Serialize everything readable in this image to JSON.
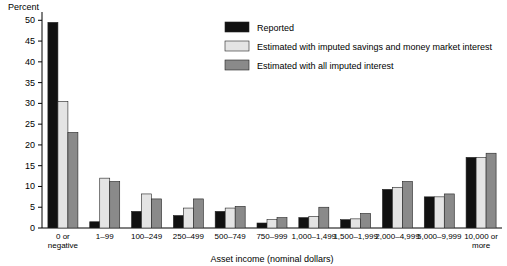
{
  "chart_data": {
    "type": "bar",
    "y_label": "Percent",
    "x_label": "Asset income (nominal dollars)",
    "categories": [
      "0 or negative",
      "1–99",
      "100–249",
      "250–499",
      "500–749",
      "750–999",
      "1,000–1,499",
      "1,500–1,999",
      "2,000–4,999",
      "5,000–9,999",
      "10,000 or more"
    ],
    "series": [
      {
        "name": "Reported",
        "color": "#111111",
        "values": [
          49.5,
          1.5,
          4,
          3,
          4,
          1.2,
          2.5,
          2,
          9.3,
          7.5,
          17
        ]
      },
      {
        "name": "Estimated with imputed savings and money market interest",
        "color": "#e4e4e4",
        "values": [
          30.5,
          12,
          8.2,
          4.8,
          4.8,
          2,
          2.8,
          2.2,
          9.8,
          7.5,
          17
        ]
      },
      {
        "name": "Estimated with all imputed interest",
        "color": "#8a8a8a",
        "values": [
          23,
          11.2,
          7,
          7,
          5.2,
          2.5,
          5,
          3.5,
          11.2,
          8.2,
          18
        ]
      }
    ],
    "ylim": [
      0,
      52
    ],
    "yticks": [
      0,
      5,
      10,
      15,
      20,
      25,
      30,
      35,
      40,
      45,
      50
    ],
    "grid": false,
    "legend": "upper right"
  }
}
